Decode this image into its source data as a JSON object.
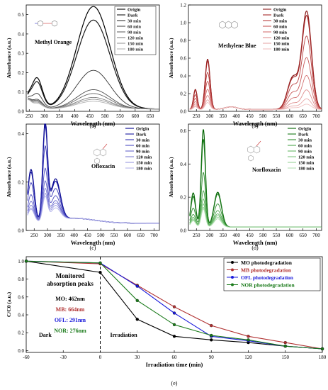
{
  "chart_data": [
    {
      "type": "line",
      "panel_label": "(a)",
      "xlabel": "Wavelength (nm)",
      "ylabel": "Absorbance (a.u.)",
      "xlim": [
        240,
        680
      ],
      "ylim": [
        0,
        0.55
      ],
      "xticks": [
        250,
        300,
        350,
        400,
        450,
        500,
        550,
        600,
        650
      ],
      "yticks": [
        0.0,
        0.1,
        0.2,
        0.3,
        0.4,
        0.5
      ],
      "ytick_labels": [
        "0.0",
        "0.1",
        "0.2",
        "0.3",
        "0.4",
        "0.5"
      ],
      "annotation": "Methyl Orange",
      "legend_position": "top-right",
      "series": [
        {
          "name": "Origin",
          "color": "#000000"
        },
        {
          "name": "Dark",
          "color": "#1a1a1a"
        },
        {
          "name": "30 min",
          "color": "#333333"
        },
        {
          "name": "60 min",
          "color": "#4d4d4d"
        },
        {
          "name": "90 min",
          "color": "#666666"
        },
        {
          "name": "120 min",
          "color": "#808080"
        },
        {
          "name": "150 min",
          "color": "#999999"
        },
        {
          "name": "180 min",
          "color": "#b3b3b3"
        }
      ],
      "peak": {
        "x": 462,
        "values": [
          0.53,
          0.46,
          0.2,
          0.1,
          0.08,
          0.06,
          0.05,
          0.04
        ]
      },
      "peak2": {
        "x": 275,
        "values": [
          0.16,
          0.14,
          0.08,
          0.05,
          0.045,
          0.04,
          0.035,
          0.03
        ]
      }
    },
    {
      "type": "line",
      "panel_label": "(b)",
      "xlabel": "Wavelength (nm)",
      "ylabel": "Absorbance (a.u.)",
      "xlim": [
        220,
        720
      ],
      "ylim": [
        0,
        1.2
      ],
      "xticks": [
        250,
        300,
        350,
        400,
        450,
        500,
        550,
        600,
        650,
        700
      ],
      "yticks": [
        0.0,
        0.2,
        0.4,
        0.6,
        0.8,
        1.0,
        1.2
      ],
      "ytick_labels": [
        "0.0",
        "0.2",
        "0.4",
        "0.6",
        "0.8",
        "1.0",
        "1.2"
      ],
      "annotation": "Methylene Blue",
      "legend_position": "top-center",
      "series": [
        {
          "name": "Origin",
          "color": "#8b1a1a"
        },
        {
          "name": "Dark",
          "color": "#a52a2a"
        },
        {
          "name": "30 min",
          "color": "#b84040"
        },
        {
          "name": "60 min",
          "color": "#c85a5a"
        },
        {
          "name": "90 min",
          "color": "#d47474"
        },
        {
          "name": "120 min",
          "color": "#df8f8f"
        },
        {
          "name": "150 min",
          "color": "#e8a8a8"
        },
        {
          "name": "180 min",
          "color": "#f0c2c2"
        }
      ],
      "peak": {
        "x": 664,
        "values": [
          1.1,
          1.05,
          0.82,
          0.58,
          0.38,
          0.22,
          0.12,
          0.06
        ]
      },
      "peak2": {
        "x": 292,
        "values": [
          0.57,
          0.55,
          0.42,
          0.32,
          0.23,
          0.16,
          0.11,
          0.08
        ]
      }
    },
    {
      "type": "line",
      "panel_label": "(c)",
      "xlabel": "Wavelength (nm)",
      "ylabel": "Absorbance (a.u.)",
      "xlim": [
        220,
        720
      ],
      "ylim": [
        0,
        0.44
      ],
      "xticks": [
        250,
        300,
        350,
        400,
        450,
        500,
        550,
        600,
        650,
        700
      ],
      "yticks": [
        0.0,
        0.2,
        0.4
      ],
      "ytick_labels": [
        "0.0",
        "0.2",
        "0.4"
      ],
      "annotation": "Ofloxacin",
      "legend_position": "top-right",
      "series": [
        {
          "name": "Origin",
          "color": "#00008b"
        },
        {
          "name": "Dark",
          "color": "#1a1aa0"
        },
        {
          "name": "30 min",
          "color": "#3333b3"
        },
        {
          "name": "60 min",
          "color": "#4d4dc2"
        },
        {
          "name": "90 min",
          "color": "#6666cc"
        },
        {
          "name": "120 min",
          "color": "#8080d6"
        },
        {
          "name": "150 min",
          "color": "#9999e0"
        },
        {
          "name": "180 min",
          "color": "#b3b3ea"
        }
      ],
      "peak": {
        "x": 291,
        "values": [
          0.4,
          0.38,
          0.3,
          0.21,
          0.16,
          0.13,
          0.11,
          0.1
        ]
      },
      "peak2": {
        "x": 330,
        "values": [
          0.17,
          0.16,
          0.13,
          0.1,
          0.08,
          0.07,
          0.06,
          0.05
        ]
      }
    },
    {
      "type": "line",
      "panel_label": "(d)",
      "xlabel": "Wavelength (nm)",
      "ylabel": "Absorbance (a.u.)",
      "xlim": [
        220,
        720
      ],
      "ylim": [
        0,
        0.64
      ],
      "xticks": [
        250,
        300,
        350,
        400,
        450,
        500,
        550,
        600,
        650,
        700
      ],
      "yticks": [
        0.0,
        0.2,
        0.4,
        0.6
      ],
      "ytick_labels": [
        "0.0",
        "0.2",
        "0.4",
        "0.6"
      ],
      "annotation": "Norfloxacin",
      "legend_position": "top-right",
      "series": [
        {
          "name": "Origin",
          "color": "#006400"
        },
        {
          "name": "Dark",
          "color": "#1a7a1a"
        },
        {
          "name": "30 min",
          "color": "#339033"
        },
        {
          "name": "60 min",
          "color": "#4da64d"
        },
        {
          "name": "90 min",
          "color": "#66b866"
        },
        {
          "name": "120 min",
          "color": "#80c680"
        },
        {
          "name": "150 min",
          "color": "#99d399"
        },
        {
          "name": "180 min",
          "color": "#b3e0b3"
        }
      ],
      "peak": {
        "x": 276,
        "values": [
          0.59,
          0.53,
          0.33,
          0.22,
          0.17,
          0.14,
          0.12,
          0.11
        ]
      },
      "peak2": {
        "x": 330,
        "values": [
          0.21,
          0.2,
          0.14,
          0.1,
          0.08,
          0.07,
          0.06,
          0.05
        ]
      }
    },
    {
      "type": "line",
      "panel_label": "(e)",
      "xlabel": "Irradiation time (min)",
      "ylabel": "C/C0 (a.u.)",
      "xlim": [
        -60,
        180
      ],
      "ylim": [
        -0.02,
        1.05
      ],
      "xticks": [
        -60,
        -30,
        0,
        30,
        60,
        90,
        120,
        150,
        180
      ],
      "yticks": [
        0.0,
        0.2,
        0.4,
        0.6,
        0.8,
        1.0
      ],
      "ytick_labels": [
        "0.0",
        "0.2",
        "0.4",
        "0.6",
        "0.8",
        "1.0"
      ],
      "x": [
        -60,
        0,
        30,
        60,
        90,
        120,
        150,
        180
      ],
      "series": [
        {
          "name": "MO photodegradation",
          "color": "#000000",
          "values": [
            1.0,
            0.875,
            0.35,
            0.16,
            0.12,
            0.09,
            0.05,
            0.02
          ]
        },
        {
          "name": "MB photodegradation",
          "color": "#b03030",
          "values": [
            1.0,
            0.97,
            0.73,
            0.49,
            0.28,
            0.16,
            0.09,
            0.02
          ]
        },
        {
          "name": "OFL photodegradation",
          "color": "#1a1adb",
          "values": [
            1.0,
            0.98,
            0.72,
            0.42,
            0.16,
            0.11,
            0.05,
            0.02
          ]
        },
        {
          "name": "NOR photodegradation",
          "color": "#1a7a1a",
          "values": [
            1.0,
            0.98,
            0.56,
            0.29,
            0.17,
            0.12,
            0.05,
            0.02
          ]
        }
      ],
      "legend_position": "top-right",
      "annotation_title": "Monitored\nabsorption peaks",
      "peak_labels": [
        {
          "text": "MO: 462nm",
          "color": "#000000"
        },
        {
          "text": "MB: 664nm",
          "color": "#b03030"
        },
        {
          "text": "OFL: 291nm",
          "color": "#1a1adb"
        },
        {
          "text": "NOR: 276nm",
          "color": "#1a7a1a"
        }
      ],
      "region_labels": [
        "Dark",
        "Irradiation"
      ]
    }
  ]
}
